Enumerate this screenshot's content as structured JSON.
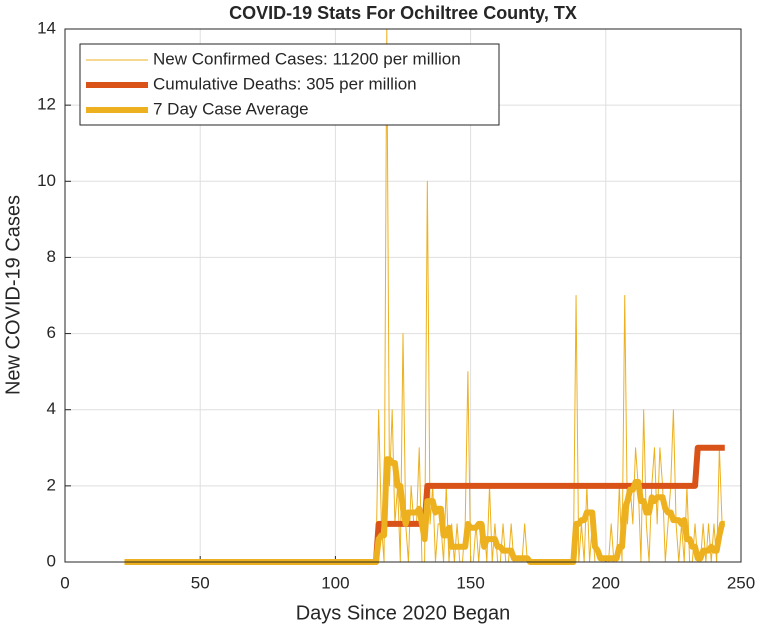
{
  "chart_data": {
    "type": "line",
    "title": "COVID-19 Stats For Ochiltree County, TX",
    "xlabel": "Days Since 2020 Began",
    "ylabel": "New COVID-19 Cases",
    "xlim": [
      0,
      250
    ],
    "xticks": [
      0,
      50,
      100,
      150,
      200,
      250
    ],
    "ylim": [
      0,
      14
    ],
    "yticks": [
      0,
      2,
      4,
      6,
      8,
      10,
      12,
      14
    ],
    "grid": true,
    "legend": "upper left",
    "x": [
      22,
      23,
      24,
      25,
      26,
      27,
      28,
      29,
      30,
      31,
      32,
      33,
      34,
      35,
      36,
      37,
      38,
      39,
      40,
      41,
      42,
      43,
      44,
      45,
      46,
      47,
      48,
      49,
      50,
      51,
      52,
      53,
      54,
      55,
      56,
      57,
      58,
      59,
      60,
      61,
      62,
      63,
      64,
      65,
      66,
      67,
      68,
      69,
      70,
      71,
      72,
      73,
      74,
      75,
      76,
      77,
      78,
      79,
      80,
      81,
      82,
      83,
      84,
      85,
      86,
      87,
      88,
      89,
      90,
      91,
      92,
      93,
      94,
      95,
      96,
      97,
      98,
      99,
      100,
      101,
      102,
      103,
      104,
      105,
      106,
      107,
      108,
      109,
      110,
      111,
      112,
      113,
      114,
      115,
      116,
      117,
      118,
      119,
      120,
      121,
      122,
      123,
      124,
      125,
      126,
      127,
      128,
      129,
      130,
      131,
      132,
      133,
      134,
      135,
      136,
      137,
      138,
      139,
      140,
      141,
      142,
      143,
      144,
      145,
      146,
      147,
      148,
      149,
      150,
      151,
      152,
      153,
      154,
      155,
      156,
      157,
      158,
      159,
      160,
      161,
      162,
      163,
      164,
      165,
      166,
      167,
      168,
      169,
      170,
      171,
      172,
      173,
      174,
      175,
      176,
      177,
      178,
      179,
      180,
      181,
      182,
      183,
      184,
      185,
      186,
      187,
      188,
      189,
      190,
      191,
      192,
      193,
      194,
      195,
      196,
      197,
      198,
      199,
      200,
      201,
      202,
      203,
      204,
      205,
      206,
      207,
      208,
      209,
      210,
      211,
      212,
      213,
      214,
      215,
      216,
      217,
      218,
      219,
      220,
      221,
      222,
      223,
      224,
      225,
      226,
      227,
      228,
      229,
      230,
      231,
      232,
      233,
      234,
      235,
      236,
      237,
      238,
      239,
      240,
      241,
      242,
      243,
      244
    ],
    "series": [
      {
        "name": "New Confirmed Cases: 11200 per million",
        "color": "#EDB120",
        "width": 1,
        "values": [
          0,
          0,
          0,
          0,
          0,
          0,
          0,
          0,
          0,
          0,
          0,
          0,
          0,
          0,
          0,
          0,
          0,
          0,
          0,
          0,
          0,
          0,
          0,
          0,
          0,
          0,
          0,
          0,
          0,
          0,
          0,
          0,
          0,
          0,
          0,
          0,
          0,
          0,
          0,
          0,
          0,
          0,
          0,
          0,
          0,
          0,
          0,
          0,
          0,
          0,
          0,
          0,
          0,
          0,
          0,
          0,
          0,
          0,
          0,
          0,
          0,
          0,
          0,
          0,
          0,
          0,
          0,
          0,
          0,
          0,
          0,
          0,
          0,
          0,
          0,
          0,
          0,
          0,
          0,
          0,
          0,
          0,
          0,
          0,
          0,
          0,
          0,
          0,
          0,
          0,
          0,
          0,
          0,
          0,
          4,
          1,
          0,
          14,
          2,
          4,
          1,
          2,
          0,
          6,
          1,
          0,
          2,
          1,
          1,
          3,
          0,
          0,
          10,
          1,
          2,
          0,
          1,
          1,
          0,
          2,
          0,
          1,
          0,
          1,
          0,
          0,
          1,
          5,
          0,
          0,
          1,
          0,
          1,
          1,
          0,
          2,
          0,
          1,
          0,
          0,
          1,
          0,
          0,
          1,
          0,
          0,
          0,
          0,
          1,
          0,
          0,
          0,
          0,
          0,
          0,
          0,
          0,
          0,
          0,
          0,
          0,
          0,
          0,
          0,
          0,
          0,
          0,
          7,
          0,
          1,
          0,
          2,
          0,
          1,
          0,
          0,
          0,
          0,
          0,
          0,
          1,
          0,
          0,
          2,
          0,
          7,
          1,
          2,
          1,
          3,
          2,
          0,
          4,
          1,
          0,
          2,
          3,
          1,
          3,
          2,
          0,
          1,
          2,
          4,
          1,
          0,
          1,
          0,
          2,
          0,
          0,
          1,
          0,
          0,
          1,
          0,
          1,
          0,
          1,
          0,
          3,
          1,
          1
        ]
      },
      {
        "name": "Cumulative Deaths: 305 per million",
        "color": "#D95319",
        "width": 6,
        "values": [
          0,
          0,
          0,
          0,
          0,
          0,
          0,
          0,
          0,
          0,
          0,
          0,
          0,
          0,
          0,
          0,
          0,
          0,
          0,
          0,
          0,
          0,
          0,
          0,
          0,
          0,
          0,
          0,
          0,
          0,
          0,
          0,
          0,
          0,
          0,
          0,
          0,
          0,
          0,
          0,
          0,
          0,
          0,
          0,
          0,
          0,
          0,
          0,
          0,
          0,
          0,
          0,
          0,
          0,
          0,
          0,
          0,
          0,
          0,
          0,
          0,
          0,
          0,
          0,
          0,
          0,
          0,
          0,
          0,
          0,
          0,
          0,
          0,
          0,
          0,
          0,
          0,
          0,
          0,
          0,
          0,
          0,
          0,
          0,
          0,
          0,
          0,
          0,
          0,
          0,
          0,
          0,
          0,
          0,
          1,
          1,
          1,
          1,
          1,
          1,
          1,
          1,
          1,
          1,
          1,
          1,
          1,
          1,
          1,
          1,
          1,
          1,
          2,
          2,
          2,
          2,
          2,
          2,
          2,
          2,
          2,
          2,
          2,
          2,
          2,
          2,
          2,
          2,
          2,
          2,
          2,
          2,
          2,
          2,
          2,
          2,
          2,
          2,
          2,
          2,
          2,
          2,
          2,
          2,
          2,
          2,
          2,
          2,
          2,
          2,
          2,
          2,
          2,
          2,
          2,
          2,
          2,
          2,
          2,
          2,
          2,
          2,
          2,
          2,
          2,
          2,
          2,
          2,
          2,
          2,
          2,
          2,
          2,
          2,
          2,
          2,
          2,
          2,
          2,
          2,
          2,
          2,
          2,
          2,
          2,
          2,
          2,
          2,
          2,
          2,
          2,
          2,
          2,
          2,
          2,
          2,
          2,
          2,
          2,
          2,
          2,
          2,
          2,
          2,
          2,
          2,
          2,
          2,
          2,
          2,
          2,
          2,
          3,
          3,
          3,
          3,
          3,
          3,
          3,
          3,
          3,
          3,
          3
        ]
      },
      {
        "name": "7 Day Case Average",
        "color": "#EDB120",
        "width": 6,
        "values": [
          0,
          0,
          0,
          0,
          0,
          0,
          0,
          0,
          0,
          0,
          0,
          0,
          0,
          0,
          0,
          0,
          0,
          0,
          0,
          0,
          0,
          0,
          0,
          0,
          0,
          0,
          0,
          0,
          0,
          0,
          0,
          0,
          0,
          0,
          0,
          0,
          0,
          0,
          0,
          0,
          0,
          0,
          0,
          0,
          0,
          0,
          0,
          0,
          0,
          0,
          0,
          0,
          0,
          0,
          0,
          0,
          0,
          0,
          0,
          0,
          0,
          0,
          0,
          0,
          0,
          0,
          0,
          0,
          0,
          0,
          0,
          0,
          0,
          0,
          0,
          0,
          0,
          0,
          0,
          0,
          0,
          0,
          0,
          0,
          0,
          0,
          0,
          0,
          0,
          0,
          0,
          0,
          0,
          0,
          0.6,
          0.7,
          0.7,
          2.7,
          2.7,
          2.6,
          2.6,
          2,
          2,
          1.4,
          1,
          1.3,
          1.3,
          1.3,
          1.3,
          1.4,
          1,
          0.6,
          1.6,
          1.6,
          1.6,
          1.3,
          1.4,
          1.4,
          0.7,
          0.7,
          0.9,
          0.4,
          0.4,
          0.4,
          0.4,
          0.4,
          0.4,
          1,
          0.9,
          0.9,
          0.9,
          1,
          1,
          0.4,
          0.6,
          0.6,
          0.6,
          0.6,
          0.4,
          0.4,
          0.3,
          0.3,
          0.3,
          0.3,
          0.1,
          0.1,
          0.1,
          0.1,
          0.1,
          0.1,
          0,
          0,
          0,
          0,
          0,
          0,
          0,
          0,
          0,
          0,
          0,
          0,
          0,
          0,
          0,
          0,
          0,
          1,
          1,
          1.1,
          1.1,
          1.3,
          1.3,
          1.3,
          0.4,
          0.3,
          0.1,
          0.1,
          0.1,
          0.1,
          0.1,
          0.1,
          0.1,
          0.4,
          0.4,
          1.4,
          1.6,
          1.9,
          1.9,
          2.1,
          2.1,
          1.6,
          1.6,
          1.3,
          1.3,
          1.7,
          1.6,
          1.7,
          1.7,
          1.7,
          1.4,
          1.3,
          1.3,
          1.1,
          1.1,
          1.1,
          1,
          1.1,
          0.6,
          0.6,
          0.4,
          0.4,
          0.1,
          0.1,
          0.3,
          0.3,
          0.3,
          0.4,
          0.3,
          0.3,
          0.7,
          1,
          1
        ]
      }
    ]
  }
}
